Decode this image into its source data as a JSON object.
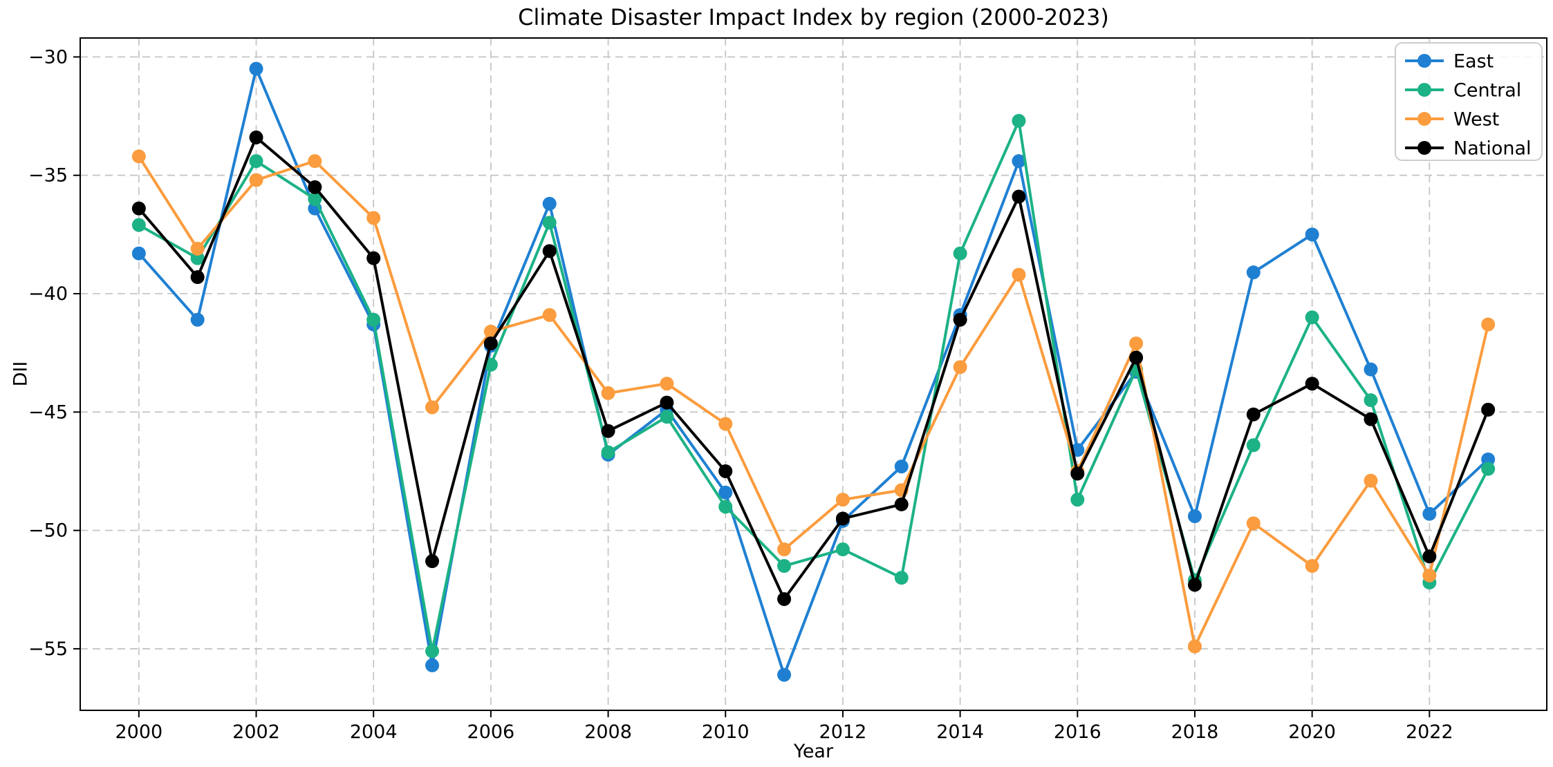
{
  "chart_data": {
    "type": "line",
    "title": "Climate Disaster Impact Index by region (2000-2023)",
    "xlabel": "Year",
    "ylabel": "DII",
    "x": [
      2000,
      2001,
      2002,
      2003,
      2004,
      2005,
      2006,
      2007,
      2008,
      2009,
      2010,
      2011,
      2012,
      2013,
      2014,
      2015,
      2016,
      2017,
      2018,
      2019,
      2020,
      2021,
      2022,
      2023
    ],
    "series": [
      {
        "name": "East",
        "color": "#1f80d2",
        "values": [
          -38.3,
          -41.1,
          -30.5,
          -36.4,
          -41.3,
          -55.7,
          -42.2,
          -36.2,
          -46.8,
          -44.9,
          -48.4,
          -56.1,
          -49.6,
          -47.3,
          -40.9,
          -34.4,
          -46.6,
          -43.3,
          -49.4,
          -39.1,
          -37.5,
          -43.2,
          -49.3,
          -47.0
        ]
      },
      {
        "name": "Central",
        "color": "#1cb286",
        "values": [
          -37.1,
          -38.5,
          -34.4,
          -36.0,
          -41.1,
          -55.1,
          -43.0,
          -37.0,
          -46.7,
          -45.2,
          -49.0,
          -51.5,
          -50.8,
          -52.0,
          -38.3,
          -32.7,
          -48.7,
          -43.2,
          -52.1,
          -46.4,
          -41.0,
          -44.5,
          -52.2,
          -47.4
        ]
      },
      {
        "name": "West",
        "color": "#fb9c3e",
        "values": [
          -34.2,
          -38.1,
          -35.2,
          -34.4,
          -36.8,
          -44.8,
          -41.6,
          -40.9,
          -44.2,
          -43.8,
          -45.5,
          -50.8,
          -48.7,
          -48.3,
          -43.1,
          -39.2,
          -47.5,
          -42.1,
          -54.9,
          -49.7,
          -51.5,
          -47.9,
          -51.9,
          -41.3
        ]
      },
      {
        "name": "National",
        "color": "#000000",
        "values": [
          -36.4,
          -39.3,
          -33.4,
          -35.5,
          -38.5,
          -51.3,
          -42.1,
          -38.2,
          -45.8,
          -44.6,
          -47.5,
          -52.9,
          -49.5,
          -48.9,
          -41.1,
          -35.9,
          -47.6,
          -42.7,
          -52.3,
          -45.1,
          -43.8,
          -45.3,
          -51.1,
          -44.9
        ]
      }
    ],
    "xlim": [
      1999,
      2024
    ],
    "ylim": [
      -57.6,
      -29.2
    ],
    "xticks": {
      "values": [
        2000,
        2002,
        2004,
        2006,
        2008,
        2010,
        2012,
        2014,
        2016,
        2018,
        2020,
        2022
      ],
      "labels": [
        "2000",
        "2002",
        "2004",
        "2006",
        "2008",
        "2010",
        "2012",
        "2014",
        "2016",
        "2018",
        "2020",
        "2022"
      ]
    },
    "yticks": {
      "values": [
        -30,
        -35,
        -40,
        -45,
        -50,
        -55
      ],
      "labels": [
        "−30",
        "−35",
        "−40",
        "−45",
        "−50",
        "−55"
      ]
    },
    "grid": true,
    "grid_color": "#c6c6c6",
    "legend": {
      "position": "upper right",
      "labels": [
        "East",
        "Central",
        "West",
        "National"
      ]
    }
  }
}
